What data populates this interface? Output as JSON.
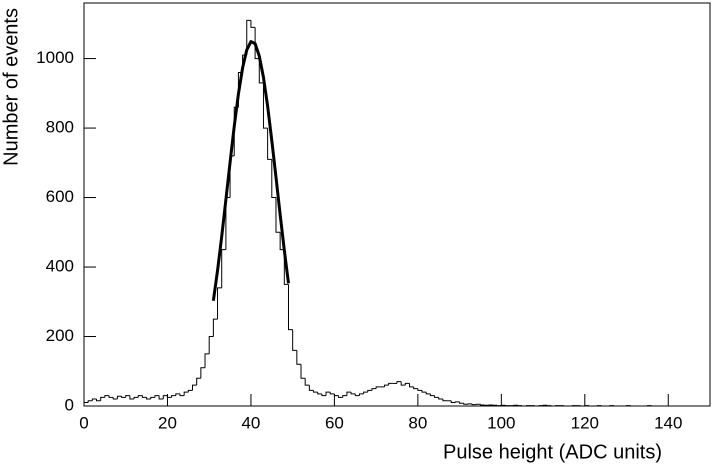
{
  "chart_data": {
    "type": "histogram",
    "xlabel": "Pulse height (ADC units)",
    "ylabel": "Number of events",
    "bins": [
      0,
      1,
      2,
      3,
      4,
      5,
      6,
      7,
      8,
      9,
      10,
      11,
      12,
      13,
      14,
      15,
      16,
      17,
      18,
      19,
      20,
      21,
      22,
      23,
      24,
      25,
      26,
      27,
      28,
      29,
      30,
      31,
      32,
      33,
      34,
      35,
      36,
      37,
      38,
      39,
      40,
      41,
      42,
      43,
      44,
      45,
      46,
      47,
      48,
      49,
      50,
      51,
      52,
      53,
      54,
      55,
      56,
      57,
      58,
      59,
      60,
      61,
      62,
      63,
      64,
      65,
      66,
      67,
      68,
      69,
      70,
      71,
      72,
      73,
      74,
      75,
      76,
      77,
      78,
      79,
      80,
      81,
      82,
      83,
      84,
      85,
      86,
      87,
      88,
      89,
      90,
      91,
      92,
      93,
      94,
      95,
      96,
      97,
      98,
      99,
      100,
      101,
      102,
      103,
      104,
      105,
      106,
      107,
      108,
      109,
      110,
      111,
      112,
      113,
      114,
      115,
      116,
      117,
      118,
      119,
      120,
      121,
      122,
      123,
      124,
      125,
      126,
      127,
      128,
      129,
      130,
      131,
      132,
      133,
      134,
      135,
      136,
      137,
      138,
      139,
      140,
      141,
      142,
      143,
      144,
      145,
      146,
      147,
      148,
      149,
      150
    ],
    "counts": [
      10,
      15,
      20,
      15,
      25,
      30,
      25,
      20,
      28,
      25,
      30,
      20,
      25,
      30,
      25,
      20,
      25,
      30,
      20,
      30,
      25,
      30,
      35,
      30,
      40,
      45,
      60,
      80,
      110,
      150,
      200,
      250,
      340,
      450,
      600,
      720,
      860,
      960,
      1010,
      1110,
      1090,
      1000,
      930,
      800,
      710,
      600,
      500,
      450,
      350,
      220,
      160,
      120,
      80,
      60,
      45,
      40,
      35,
      30,
      40,
      35,
      30,
      25,
      30,
      40,
      35,
      30,
      35,
      40,
      45,
      50,
      55,
      55,
      60,
      65,
      65,
      70,
      60,
      65,
      55,
      50,
      45,
      40,
      35,
      30,
      25,
      20,
      15,
      15,
      10,
      12,
      8,
      5,
      6,
      4,
      5,
      3,
      2,
      3,
      2,
      1,
      2,
      1,
      1,
      2,
      1,
      0,
      1,
      1,
      0,
      1,
      2,
      1,
      0,
      1,
      1,
      0,
      0,
      1,
      1,
      0,
      1,
      0,
      0,
      1,
      0,
      0,
      1,
      0,
      0,
      0,
      1,
      0,
      0,
      0,
      0,
      1,
      0,
      0,
      0,
      0,
      0,
      0,
      0,
      0,
      0,
      0,
      0,
      0,
      0,
      0
    ],
    "color": "#000000",
    "fit": {
      "x": [
        31,
        32,
        33,
        34,
        35,
        36,
        37,
        38,
        39,
        40,
        41,
        42,
        43,
        44,
        45,
        46,
        47,
        48,
        49
      ],
      "values": [
        303,
        390,
        488,
        594,
        701,
        805,
        898,
        973,
        1025,
        1049,
        1043,
        1007,
        946,
        863,
        764,
        659,
        551,
        448,
        353
      ],
      "color": "#000000"
    },
    "xlim": [
      0,
      150
    ],
    "xticks": [
      0,
      20,
      40,
      60,
      80,
      100,
      120,
      140
    ],
    "ylim": [
      0,
      1160
    ],
    "yticks": [
      0,
      200,
      400,
      600,
      800,
      1000
    ]
  }
}
